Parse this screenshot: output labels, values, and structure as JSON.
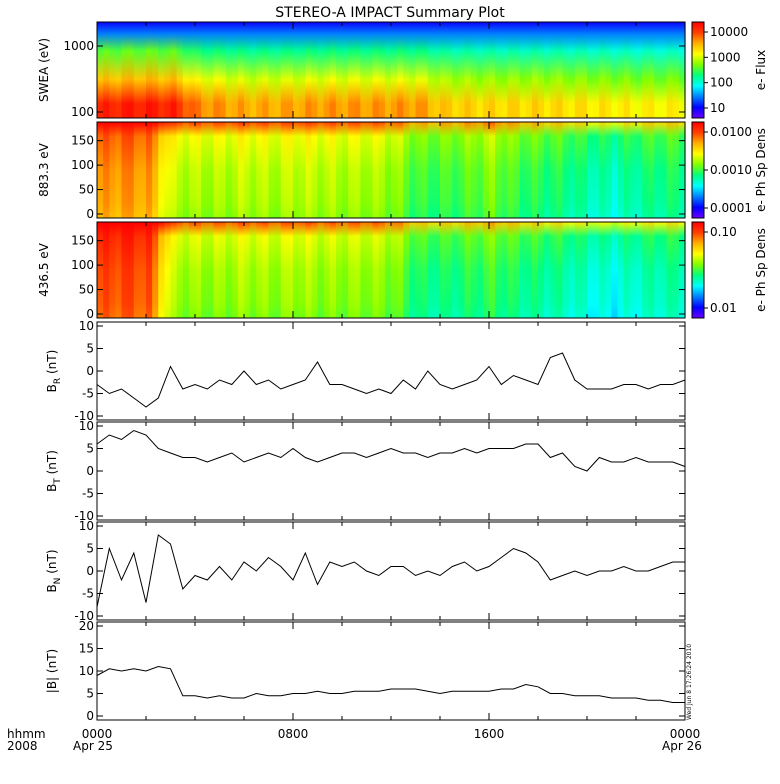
{
  "title": "STEREO-A IMPACT Summary Plot",
  "footer": {
    "hhmm": "hhmm",
    "year": "2008",
    "date_start": "Apr 25",
    "date_end": "Apr 26",
    "stamp": "Wed Jun  8 17:26:24 2010"
  },
  "colors": {
    "frame": "#000000",
    "line": "#000000",
    "colormap": [
      "#6a00ff",
      "#0000ff",
      "#0080ff",
      "#00ffff",
      "#00ff80",
      "#80ff00",
      "#ffff00",
      "#ffb000",
      "#ff4000",
      "#ff0000"
    ]
  },
  "chart_data": [
    {
      "type": "heatmap",
      "ylabel": "SWEA (eV)",
      "yscale": "log",
      "yticks": [
        "1000",
        "100"
      ],
      "colorbar_label": "e- Flux",
      "colorbar_ticks": [
        "10000",
        "1000",
        "100",
        "10"
      ],
      "x_hours": [
        0,
        1,
        2,
        3,
        4,
        5,
        6,
        7,
        8,
        9,
        10,
        11,
        12,
        13,
        14,
        15,
        16,
        17,
        18,
        19,
        20,
        21,
        22,
        23,
        24
      ],
      "profile_low_energy_intensity": [
        0.93,
        0.95,
        0.95,
        0.94,
        0.82,
        0.8,
        0.78,
        0.78,
        0.79,
        0.8,
        0.8,
        0.8,
        0.8,
        0.8,
        0.74,
        0.73,
        0.72,
        0.72,
        0.72,
        0.71,
        0.7,
        0.69,
        0.68,
        0.68,
        0.68
      ]
    },
    {
      "type": "heatmap",
      "ylabel": "883.3 eV",
      "yticks": [
        "150",
        "100",
        "50",
        "0"
      ],
      "ylim": [
        0,
        180
      ],
      "colorbar_label": "e- Ph Sp Dens",
      "colorbar_ticks": [
        "0.0100",
        "0.0010",
        "0.0001"
      ],
      "x_hours": [
        0,
        1,
        2,
        3,
        4,
        5,
        6,
        7,
        8,
        9,
        10,
        11,
        12,
        13,
        14,
        15,
        16,
        17,
        18,
        19,
        20,
        21,
        22,
        23,
        24
      ],
      "profile_intensity": [
        0.8,
        0.82,
        0.8,
        0.62,
        0.6,
        0.6,
        0.62,
        0.6,
        0.62,
        0.61,
        0.6,
        0.6,
        0.58,
        0.5,
        0.5,
        0.52,
        0.56,
        0.5,
        0.48,
        0.46,
        0.42,
        0.4,
        0.44,
        0.46,
        0.46
      ]
    },
    {
      "type": "heatmap",
      "ylabel": "436.5 eV",
      "yticks": [
        "150",
        "100",
        "50",
        "0"
      ],
      "ylim": [
        0,
        180
      ],
      "colorbar_label": "e- Ph Sp Dens",
      "colorbar_ticks": [
        "0.10",
        "0.01"
      ],
      "x_hours": [
        0,
        1,
        2,
        3,
        4,
        5,
        6,
        7,
        8,
        9,
        10,
        11,
        12,
        13,
        14,
        15,
        16,
        17,
        18,
        19,
        20,
        21,
        22,
        23,
        24
      ],
      "profile_intensity": [
        0.88,
        0.9,
        0.88,
        0.6,
        0.58,
        0.58,
        0.6,
        0.58,
        0.6,
        0.58,
        0.58,
        0.58,
        0.56,
        0.46,
        0.45,
        0.47,
        0.5,
        0.46,
        0.44,
        0.42,
        0.38,
        0.36,
        0.4,
        0.42,
        0.42
      ]
    },
    {
      "type": "line",
      "ylabel": "B",
      "ylabel_sub": "R",
      "ylabel_unit": " (nT)",
      "ylim": [
        -10,
        10
      ],
      "yticks": [
        "10",
        "5",
        "0",
        "-5",
        "-10"
      ],
      "x": [
        0,
        0.5,
        1,
        1.5,
        2,
        2.5,
        3,
        3.5,
        4,
        4.5,
        5,
        5.5,
        6,
        6.5,
        7,
        7.5,
        8,
        8.5,
        9,
        9.5,
        10,
        10.5,
        11,
        11.5,
        12,
        12.5,
        13,
        13.5,
        14,
        14.5,
        15,
        15.5,
        16,
        16.5,
        17,
        17.5,
        18,
        18.5,
        19,
        19.5,
        20,
        20.5,
        21,
        21.5,
        22,
        22.5,
        23,
        23.5,
        24
      ],
      "y": [
        -3,
        -5,
        -4,
        -6,
        -8,
        -6,
        1,
        -4,
        -3,
        -4,
        -2,
        -3,
        0,
        -3,
        -2,
        -4,
        -3,
        -2,
        2,
        -3,
        -3,
        -4,
        -5,
        -4,
        -5,
        -2,
        -4,
        0,
        -3,
        -4,
        -3,
        -2,
        1,
        -3,
        -1,
        -2,
        -3,
        3,
        4,
        -2,
        -4,
        -4,
        -4,
        -3,
        -3,
        -4,
        -3,
        -3,
        -2
      ]
    },
    {
      "type": "line",
      "ylabel": "B",
      "ylabel_sub": "T",
      "ylabel_unit": " (nT)",
      "ylim": [
        -10,
        10
      ],
      "yticks": [
        "10",
        "5",
        "0",
        "-5",
        "-10"
      ],
      "x": [
        0,
        0.5,
        1,
        1.5,
        2,
        2.5,
        3,
        3.5,
        4,
        4.5,
        5,
        5.5,
        6,
        6.5,
        7,
        7.5,
        8,
        8.5,
        9,
        9.5,
        10,
        10.5,
        11,
        11.5,
        12,
        12.5,
        13,
        13.5,
        14,
        14.5,
        15,
        15.5,
        16,
        16.5,
        17,
        17.5,
        18,
        18.5,
        19,
        19.5,
        20,
        20.5,
        21,
        21.5,
        22,
        22.5,
        23,
        23.5,
        24
      ],
      "y": [
        6,
        8,
        7,
        9,
        8,
        5,
        4,
        3,
        3,
        2,
        3,
        4,
        2,
        3,
        4,
        3,
        5,
        3,
        2,
        3,
        4,
        4,
        3,
        4,
        5,
        4,
        4,
        3,
        4,
        4,
        5,
        4,
        5,
        5,
        5,
        6,
        6,
        3,
        4,
        1,
        0,
        3,
        2,
        2,
        3,
        2,
        2,
        2,
        1
      ]
    },
    {
      "type": "line",
      "ylabel": "B",
      "ylabel_sub": "N",
      "ylabel_unit": " (nT)",
      "ylim": [
        -10,
        10
      ],
      "yticks": [
        "10",
        "5",
        "0",
        "-5",
        "-10"
      ],
      "x": [
        0,
        0.5,
        1,
        1.5,
        2,
        2.5,
        3,
        3.5,
        4,
        4.5,
        5,
        5.5,
        6,
        6.5,
        7,
        7.5,
        8,
        8.5,
        9,
        9.5,
        10,
        10.5,
        11,
        11.5,
        12,
        12.5,
        13,
        13.5,
        14,
        14.5,
        15,
        15.5,
        16,
        16.5,
        17,
        17.5,
        18,
        18.5,
        19,
        19.5,
        20,
        20.5,
        21,
        21.5,
        22,
        22.5,
        23,
        23.5,
        24
      ],
      "y": [
        -8,
        5,
        -2,
        4,
        -7,
        8,
        6,
        -4,
        -1,
        -2,
        1,
        -2,
        2,
        0,
        3,
        1,
        -2,
        4,
        -3,
        2,
        1,
        2,
        0,
        -1,
        1,
        1,
        -1,
        0,
        -1,
        1,
        2,
        0,
        1,
        3,
        5,
        4,
        2,
        -2,
        -1,
        0,
        -1,
        0,
        0,
        1,
        0,
        0,
        1,
        2,
        2
      ]
    },
    {
      "type": "line",
      "ylabel": "|B|",
      "ylabel_sub": "",
      "ylabel_unit": " (nT)",
      "ylim": [
        0,
        20
      ],
      "yticks": [
        "20",
        "15",
        "10",
        "5",
        "0"
      ],
      "x": [
        0,
        0.5,
        1,
        1.5,
        2,
        2.5,
        3,
        3.5,
        4,
        4.5,
        5,
        5.5,
        6,
        6.5,
        7,
        7.5,
        8,
        8.5,
        9,
        9.5,
        10,
        10.5,
        11,
        11.5,
        12,
        12.5,
        13,
        13.5,
        14,
        14.5,
        15,
        15.5,
        16,
        16.5,
        17,
        17.5,
        18,
        18.5,
        19,
        19.5,
        20,
        20.5,
        21,
        21.5,
        22,
        22.5,
        23,
        23.5,
        24
      ],
      "y": [
        9,
        10.5,
        10,
        10.5,
        10,
        11,
        10.5,
        4.5,
        4.5,
        4,
        4.5,
        4,
        4,
        5,
        4.5,
        4.5,
        5,
        5,
        5.5,
        5,
        5,
        5.5,
        5.5,
        5.5,
        6,
        6,
        6,
        5.5,
        5,
        5.5,
        5.5,
        5.5,
        5.5,
        6,
        6,
        7,
        6.5,
        5,
        5,
        4.5,
        4.5,
        4.5,
        4,
        4,
        4,
        3.5,
        3.5,
        3,
        3
      ]
    }
  ],
  "x_axis": {
    "ticks": [
      "0000",
      "0800",
      "1600",
      "0000"
    ]
  }
}
